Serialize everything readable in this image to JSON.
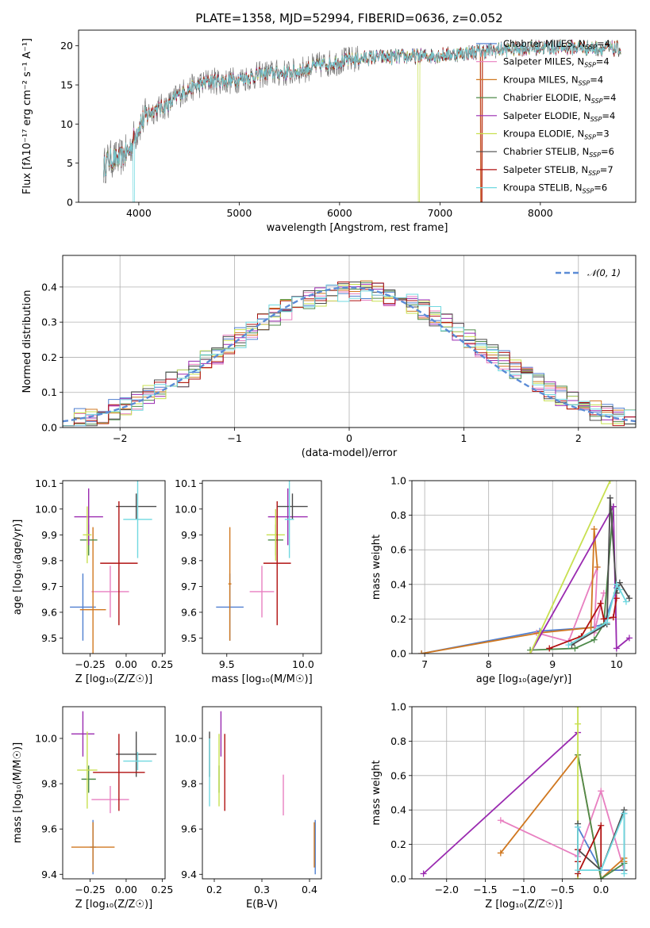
{
  "figure": {
    "title": "PLATE=1358, MJD=52994, FIBERID=0636, z=0.052"
  },
  "colors": {
    "Chabrier MILES": "#4f7fd0",
    "Salpeter MILES": "#e87fc0",
    "Kroupa MILES": "#d07820",
    "Chabrier ELODIE": "#4e8a4a",
    "Salpeter ELODIE": "#9a2ab0",
    "Kroupa ELODIE": "#c8e050",
    "Chabrier STELIB": "#4a4a4a",
    "Salpeter STELIB": "#b01010",
    "Kroupa STELIB": "#70d8e0",
    "data": "#7a7a7a"
  },
  "chart_data": [
    {
      "type": "line",
      "title": "PLATE=1358, MJD=52994, FIBERID=0636, z=0.052",
      "xlabel": "wavelength [Angstrom, rest frame]",
      "ylabel": "Flux [fλ10⁻¹⁷ erg cm⁻² s⁻¹ A⁻¹]",
      "xlim": [
        3400,
        8950
      ],
      "ylim": [
        0,
        22
      ],
      "xticks": [
        "4000",
        "5000",
        "6000",
        "7000",
        "8000"
      ],
      "yticks": [
        "0",
        "5",
        "10",
        "15",
        "20"
      ],
      "grid": false,
      "legend_position": "right",
      "continuum": {
        "x": [
          3650,
          3700,
          3800,
          3900,
          4000,
          4100,
          4200,
          4300,
          4400,
          4500,
          4700,
          4900,
          5100,
          5300,
          5500,
          5800,
          6000,
          6300,
          6600,
          6900,
          7200,
          7400,
          7700,
          8000,
          8300,
          8800
        ],
        "y": [
          4.5,
          5.5,
          5.5,
          6.5,
          9.8,
          11.5,
          12.0,
          12.5,
          13.8,
          14.5,
          15.5,
          15.5,
          16.0,
          16.5,
          16.5,
          17.5,
          18.0,
          18.5,
          18.6,
          18.7,
          19.0,
          19.3,
          19.6,
          19.8,
          19.8,
          19.6
        ]
      },
      "series": [
        {
          "name": "Chabrier MILES",
          "n_ssp": "4",
          "drop_x": null
        },
        {
          "name": "Salpeter MILES",
          "n_ssp": "4",
          "drop_x": null
        },
        {
          "name": "Kroupa MILES",
          "n_ssp": "4",
          "drop_x": 7410
        },
        {
          "name": "Chabrier ELODIE",
          "n_ssp": "4",
          "drop_x": null
        },
        {
          "name": "Salpeter ELODIE",
          "n_ssp": "4",
          "drop_x": null
        },
        {
          "name": "Kroupa ELODIE",
          "n_ssp": "3",
          "drop_x": 6790
        },
        {
          "name": "Chabrier STELIB",
          "n_ssp": "6",
          "drop_x": null
        },
        {
          "name": "Salpeter STELIB",
          "n_ssp": "7",
          "drop_x": 7415
        },
        {
          "name": "Kroupa STELIB",
          "n_ssp": "6",
          "drop_x": 3950
        }
      ]
    },
    {
      "type": "line",
      "xlabel": "(data-model)/error",
      "ylabel": "Normed distribution",
      "xlim": [
        -2.5,
        2.5
      ],
      "ylim": [
        0,
        0.49
      ],
      "xticks": [
        "−2",
        "−1",
        "0",
        "1",
        "2"
      ],
      "yticks": [
        "0.0",
        "0.1",
        "0.2",
        "0.3",
        "0.4"
      ],
      "grid": true,
      "legend": "𝒩(0, 1)",
      "legend_position": "top-right",
      "bin_width": 0.1,
      "bin_start": -2.5,
      "mean_curve": [
        0.02,
        0.025,
        0.03,
        0.04,
        0.05,
        0.065,
        0.075,
        0.09,
        0.11,
        0.13,
        0.145,
        0.165,
        0.19,
        0.21,
        0.235,
        0.255,
        0.28,
        0.3,
        0.32,
        0.335,
        0.345,
        0.36,
        0.37,
        0.38,
        0.385,
        0.39,
        0.39,
        0.385,
        0.375,
        0.365,
        0.35,
        0.335,
        0.315,
        0.295,
        0.275,
        0.255,
        0.23,
        0.21,
        0.19,
        0.165,
        0.145,
        0.125,
        0.105,
        0.09,
        0.075,
        0.06,
        0.05,
        0.04,
        0.035,
        0.025
      ]
    },
    {
      "type": "scatter",
      "xlabel": "Z [log₁₀(Z/Z☉)]",
      "ylabel": "age  [log₁₀(age/yr)]",
      "xlim": [
        -0.44,
        0.27
      ],
      "ylim": [
        9.44,
        10.11
      ],
      "xticks": [
        "−0.25",
        "0.00",
        "0.25"
      ],
      "yticks": [
        "9.5",
        "9.6",
        "9.7",
        "9.8",
        "9.9",
        "10.0",
        "10.1"
      ],
      "points": [
        {
          "series": "Chabrier MILES",
          "x": -0.3,
          "y": 9.62,
          "xerr": 0.09,
          "yerr": 0.13
        },
        {
          "series": "Salpeter MILES",
          "x": -0.11,
          "y": 9.68,
          "xerr": 0.13,
          "yerr": 0.1
        },
        {
          "series": "Kroupa MILES",
          "x": -0.23,
          "y": 9.61,
          "xerr": 0.09,
          "yerr": 0.32
        },
        {
          "series": "Chabrier ELODIE",
          "x": -0.26,
          "y": 9.88,
          "xerr": 0.06,
          "yerr": 0.06
        },
        {
          "series": "Salpeter ELODIE",
          "x": -0.26,
          "y": 9.97,
          "xerr": 0.1,
          "yerr": 0.11
        },
        {
          "series": "Kroupa ELODIE",
          "x": -0.27,
          "y": 9.9,
          "xerr": 0.03,
          "yerr": 0.11
        },
        {
          "series": "Chabrier STELIB",
          "x": 0.07,
          "y": 10.01,
          "xerr": 0.14,
          "yerr": 0.05
        },
        {
          "series": "Salpeter STELIB",
          "x": -0.05,
          "y": 9.79,
          "xerr": 0.13,
          "yerr": 0.24
        },
        {
          "series": "Kroupa STELIB",
          "x": 0.08,
          "y": 9.96,
          "xerr": 0.1,
          "yerr": 0.15
        }
      ]
    },
    {
      "type": "scatter",
      "xlabel": "mass [log₁₀(M/M☉)]",
      "xlim": [
        9.34,
        10.12
      ],
      "ylim": [
        9.44,
        10.11
      ],
      "xticks": [
        "9.5",
        "10.0"
      ],
      "yticks": [
        "9.5",
        "9.6",
        "9.7",
        "9.8",
        "9.9",
        "10.0",
        "10.1"
      ],
      "points": [
        {
          "series": "Chabrier MILES",
          "x": 9.52,
          "y": 9.62,
          "xerr": 0.09,
          "yerr": 0.13
        },
        {
          "series": "Salpeter MILES",
          "x": 9.73,
          "y": 9.68,
          "xerr": 0.08,
          "yerr": 0.1
        },
        {
          "series": "Kroupa MILES",
          "x": 9.52,
          "y": 9.71,
          "xerr": 0.01,
          "yerr": 0.22
        },
        {
          "series": "Chabrier ELODIE",
          "x": 9.82,
          "y": 9.88,
          "xerr": 0.05,
          "yerr": 0.06
        },
        {
          "series": "Salpeter ELODIE",
          "x": 9.9,
          "y": 9.97,
          "xerr": 0.13,
          "yerr": 0.11
        },
        {
          "series": "Kroupa ELODIE",
          "x": 9.82,
          "y": 9.9,
          "xerr": 0.06,
          "yerr": 0.1
        },
        {
          "series": "Chabrier STELIB",
          "x": 9.93,
          "y": 10.01,
          "xerr": 0.1,
          "yerr": 0.05
        },
        {
          "series": "Salpeter STELIB",
          "x": 9.83,
          "y": 9.79,
          "xerr": 0.09,
          "yerr": 0.24
        },
        {
          "series": "Kroupa STELIB",
          "x": 9.91,
          "y": 9.96,
          "xerr": 0.03,
          "yerr": 0.15
        }
      ]
    },
    {
      "type": "line",
      "xlabel": "age  [log₁₀(age/yr)]",
      "ylabel": "mass weight",
      "xlim": [
        6.8,
        10.3
      ],
      "ylim": [
        0,
        1
      ],
      "xticks": [
        "7",
        "8",
        "9",
        "10"
      ],
      "yticks": [
        "0.0",
        "0.2",
        "0.4",
        "0.6",
        "0.8",
        "1.0"
      ],
      "grid": true,
      "series": [
        {
          "name": "Chabrier MILES",
          "x": [
            6.95,
            8.8,
            9.6,
            9.8,
            10.0
          ],
          "y": [
            0.0,
            0.13,
            0.15,
            0.17,
            0.38
          ]
        },
        {
          "name": "Salpeter MILES",
          "x": [
            8.75,
            9.25,
            9.7,
            9.65,
            9.8
          ],
          "y": [
            0.12,
            0.07,
            0.5,
            0.12,
            0.35
          ]
        },
        {
          "name": "Kroupa MILES",
          "x": [
            6.95,
            8.8,
            9.6,
            9.65,
            9.7
          ],
          "y": [
            0.0,
            0.12,
            0.15,
            0.72,
            0.5
          ]
        },
        {
          "name": "Chabrier ELODIE",
          "x": [
            8.65,
            9.35,
            9.65,
            9.8,
            9.95
          ],
          "y": [
            0.02,
            0.03,
            0.08,
            0.17,
            0.85
          ]
        },
        {
          "name": "Salpeter ELODIE",
          "x": [
            8.65,
            9.95,
            10.0,
            10.2
          ],
          "y": [
            0.0,
            0.85,
            0.03,
            0.09
          ]
        },
        {
          "name": "Kroupa ELODIE",
          "x": [
            8.65,
            9.9
          ],
          "y": [
            0.0,
            1.0
          ]
        },
        {
          "name": "Chabrier STELIB",
          "x": [
            9.3,
            9.85,
            9.9,
            10.0,
            10.05,
            10.2
          ],
          "y": [
            0.05,
            0.17,
            0.9,
            0.35,
            0.41,
            0.32
          ]
        },
        {
          "name": "Salpeter STELIB",
          "x": [
            8.95,
            9.45,
            9.75,
            9.8,
            9.95,
            10.0
          ],
          "y": [
            0.03,
            0.1,
            0.29,
            0.2,
            0.21,
            0.32
          ]
        },
        {
          "name": "Kroupa STELIB",
          "x": [
            9.25,
            9.85,
            10.0,
            10.05,
            10.15
          ],
          "y": [
            0.05,
            0.18,
            0.4,
            0.37,
            0.3
          ]
        }
      ]
    },
    {
      "type": "scatter",
      "xlabel": "Z [log₁₀(Z/Z☉)]",
      "ylabel": "mass [log₁₀(M/M☉)]",
      "xlim": [
        -0.44,
        0.27
      ],
      "ylim": [
        9.38,
        10.14
      ],
      "xticks": [
        "−0.25",
        "0.00",
        "0.25"
      ],
      "yticks": [
        "9.4",
        "9.6",
        "9.8",
        "10.0"
      ],
      "points": [
        {
          "series": "Chabrier MILES",
          "x": -0.23,
          "y": 9.52,
          "xerr": 0.02,
          "yerr": 0.12
        },
        {
          "series": "Salpeter MILES",
          "x": -0.11,
          "y": 9.73,
          "xerr": 0.13,
          "yerr": 0.06
        },
        {
          "series": "Kroupa MILES",
          "x": -0.23,
          "y": 9.52,
          "xerr": 0.15,
          "yerr": 0.11
        },
        {
          "series": "Chabrier ELODIE",
          "x": -0.26,
          "y": 9.82,
          "xerr": 0.05,
          "yerr": 0.06
        },
        {
          "series": "Salpeter ELODIE",
          "x": -0.3,
          "y": 10.02,
          "xerr": 0.08,
          "yerr": 0.1
        },
        {
          "series": "Kroupa ELODIE",
          "x": -0.27,
          "y": 9.86,
          "xerr": 0.07,
          "yerr": 0.17
        },
        {
          "series": "Chabrier STELIB",
          "x": 0.07,
          "y": 9.93,
          "xerr": 0.14,
          "yerr": 0.1
        },
        {
          "series": "Salpeter STELIB",
          "x": -0.05,
          "y": 9.85,
          "xerr": 0.18,
          "yerr": 0.17
        },
        {
          "series": "Kroupa STELIB",
          "x": 0.08,
          "y": 9.9,
          "xerr": 0.1,
          "yerr": 0.04
        }
      ]
    },
    {
      "type": "scatter",
      "xlabel": "E(B-V)",
      "xlim": [
        0.175,
        0.425
      ],
      "ylim": [
        9.38,
        10.14
      ],
      "xticks": [
        "0.2",
        "0.3",
        "0.4"
      ],
      "yticks": [
        "9.4",
        "9.6",
        "9.8",
        "10.0"
      ],
      "points": [
        {
          "series": "Chabrier MILES",
          "x": 0.412,
          "y": 9.52,
          "yerr": 0.12
        },
        {
          "series": "Salpeter MILES",
          "x": 0.345,
          "y": 9.75,
          "yerr": 0.09
        },
        {
          "series": "Kroupa MILES",
          "x": 0.41,
          "y": 9.53,
          "yerr": 0.1
        },
        {
          "series": "Chabrier ELODIE",
          "x": 0.21,
          "y": 9.82,
          "yerr": 0.06
        },
        {
          "series": "Salpeter ELODIE",
          "x": 0.214,
          "y": 10.02,
          "yerr": 0.1
        },
        {
          "series": "Kroupa ELODIE",
          "x": 0.21,
          "y": 9.86,
          "yerr": 0.16
        },
        {
          "series": "Chabrier STELIB",
          "x": 0.19,
          "y": 9.93,
          "yerr": 0.1
        },
        {
          "series": "Salpeter STELIB",
          "x": 0.222,
          "y": 9.85,
          "yerr": 0.17
        },
        {
          "series": "Kroupa STELIB",
          "x": 0.19,
          "y": 9.85,
          "yerr": 0.15
        }
      ]
    },
    {
      "type": "line",
      "xlabel": "Z [log₁₀(Z/Z☉)]",
      "ylabel": "mass weight",
      "xlim": [
        -2.45,
        0.45
      ],
      "ylim": [
        0,
        1
      ],
      "xticks": [
        "−2.0",
        "−1.5",
        "−1.0",
        "−0.5",
        "0.0"
      ],
      "yticks": [
        "0.0",
        "0.2",
        "0.4",
        "0.6",
        "0.8",
        "1.0"
      ],
      "grid": true,
      "series": [
        {
          "name": "Chabrier MILES",
          "x": [
            -0.3,
            -0.3,
            0.0,
            0.3,
            0.3
          ],
          "y": [
            0.0,
            0.3,
            0.05,
            0.05,
            0.38
          ]
        },
        {
          "name": "Salpeter MILES",
          "x": [
            -1.3,
            -0.3,
            0.0,
            0.3
          ],
          "y": [
            0.34,
            0.13,
            0.51,
            0.05
          ]
        },
        {
          "name": "Kroupa MILES",
          "x": [
            -1.3,
            -0.3,
            0.0,
            0.3,
            0.3
          ],
          "y": [
            0.15,
            0.72,
            0.0,
            0.12,
            0.1
          ]
        },
        {
          "name": "Chabrier ELODIE",
          "x": [
            -0.3,
            0.0,
            0.3
          ],
          "y": [
            0.72,
            0.0,
            0.09
          ]
        },
        {
          "name": "Salpeter ELODIE",
          "x": [
            -2.3,
            -0.3
          ],
          "y": [
            0.03,
            0.85
          ]
        },
        {
          "name": "Kroupa ELODIE",
          "x": [
            -0.3,
            -0.3,
            -0.3
          ],
          "y": [
            0.0,
            0.9,
            1.0
          ]
        },
        {
          "name": "Chabrier STELIB",
          "x": [
            -0.3,
            -0.3,
            0.0,
            0.3,
            0.3
          ],
          "y": [
            0.32,
            0.17,
            0.05,
            0.4,
            0.05
          ]
        },
        {
          "name": "Salpeter STELIB",
          "x": [
            -0.3,
            -0.3,
            -0.3,
            0.0,
            0.0
          ],
          "y": [
            0.17,
            0.1,
            0.03,
            0.31,
            0.05
          ]
        },
        {
          "name": "Kroupa STELIB",
          "x": [
            -0.3,
            -0.3,
            0.0,
            0.3,
            0.3
          ],
          "y": [
            0.3,
            0.05,
            0.05,
            0.38,
            0.03
          ]
        }
      ]
    }
  ]
}
